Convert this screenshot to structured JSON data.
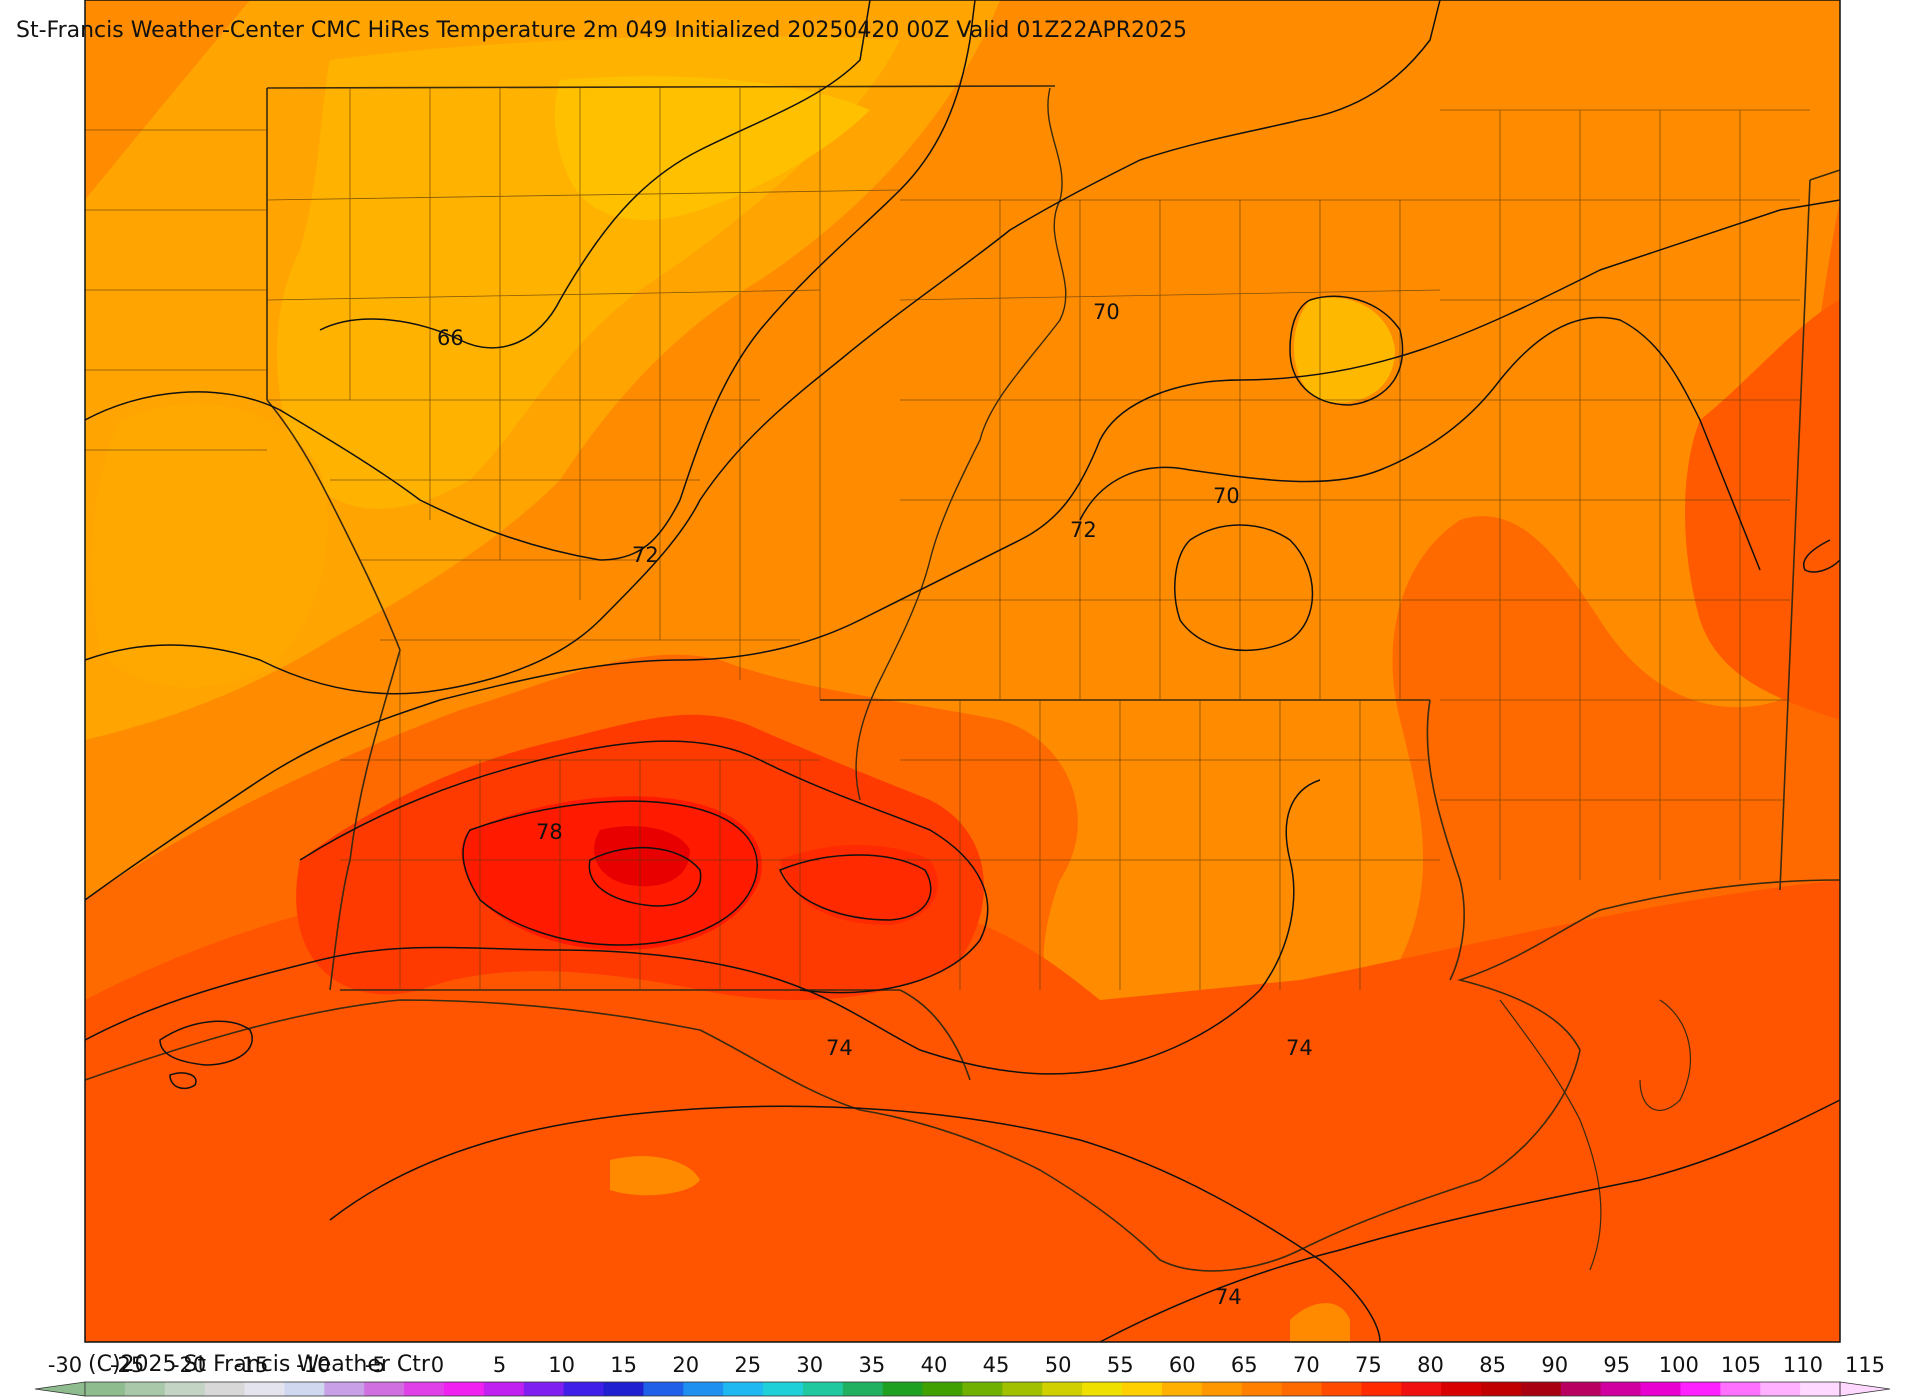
{
  "title": "St-Francis Weather-Center CMC HiRes Temperature 2m  049 Initialized 20250420 00Z Valid 01Z22APR2025",
  "credit": "(C)2025 St Francis Weather Ctr",
  "contour_labels": [
    "66",
    "70",
    "70",
    "72",
    "72",
    "78",
    "74",
    "74",
    "74"
  ],
  "colorbar": {
    "ticks": [
      "-30",
      "-25",
      "-20",
      "-15",
      "-10",
      "-5",
      "0",
      "5",
      "10",
      "15",
      "20",
      "25",
      "30",
      "35",
      "40",
      "45",
      "50",
      "55",
      "60",
      "65",
      "70",
      "75",
      "80",
      "85",
      "90",
      "95",
      "100",
      "105",
      "110",
      "115"
    ],
    "colors": [
      "#8fbc8f",
      "#a9c8a9",
      "#c4d4c4",
      "#d8d8d8",
      "#e4e4ee",
      "#d0d8f0",
      "#c8a0e8",
      "#d070e0",
      "#e040e8",
      "#f020f0",
      "#c020f0",
      "#8020f0",
      "#4020e8",
      "#2020d0",
      "#2060e8",
      "#2090f0",
      "#20b8f0",
      "#20d0d8",
      "#20c8a0",
      "#20b060",
      "#20a020",
      "#40a000",
      "#70b000",
      "#a0c000",
      "#d0d000",
      "#f0e000",
      "#ffd000",
      "#ffb000",
      "#ff9800",
      "#ff8000",
      "#ff6a00",
      "#ff4a00",
      "#ff2a00",
      "#f01010",
      "#d80000",
      "#c00000",
      "#a80010",
      "#b80060",
      "#d000a0",
      "#e800d0",
      "#ff20ff",
      "#ff70ff",
      "#ffb0ff",
      "#ffd8ff"
    ]
  }
}
